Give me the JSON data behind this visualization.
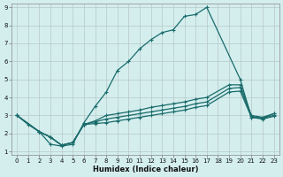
{
  "xlabel": "Humidex (Indice chaleur)",
  "bg_color": "#d4eeee",
  "grid_color": "#b8c8c8",
  "line_color": "#1a6b6b",
  "xlim": [
    -0.5,
    23.5
  ],
  "ylim": [
    0.8,
    9.2
  ],
  "xticks": [
    0,
    1,
    2,
    3,
    4,
    5,
    6,
    7,
    8,
    9,
    10,
    11,
    12,
    13,
    14,
    15,
    16,
    17,
    18,
    19,
    20,
    21,
    22,
    23
  ],
  "yticks": [
    1,
    2,
    3,
    4,
    5,
    6,
    7,
    8,
    9
  ],
  "line1_x": [
    0,
    1,
    2,
    3,
    4,
    5,
    6,
    7,
    8,
    9,
    10,
    11,
    12,
    13,
    14,
    15,
    16,
    17,
    20,
    21,
    22,
    23
  ],
  "line1_y": [
    3.0,
    2.5,
    2.1,
    1.4,
    1.3,
    1.4,
    2.6,
    3.5,
    4.3,
    5.5,
    6.0,
    6.7,
    7.2,
    7.6,
    7.75,
    8.5,
    8.6,
    9.0,
    5.0,
    2.9,
    2.85,
    3.1
  ],
  "line2_x": [
    0,
    2,
    3,
    4,
    5,
    6,
    7,
    8,
    9,
    10,
    11,
    12,
    13,
    14,
    15,
    16,
    17,
    19,
    20,
    21,
    22,
    23
  ],
  "line2_y": [
    3.0,
    2.1,
    1.8,
    1.35,
    1.5,
    2.5,
    2.7,
    3.0,
    3.1,
    3.2,
    3.3,
    3.45,
    3.55,
    3.65,
    3.75,
    3.9,
    4.0,
    4.7,
    4.7,
    3.0,
    2.9,
    3.1
  ],
  "line3_x": [
    0,
    2,
    3,
    4,
    5,
    6,
    7,
    8,
    9,
    10,
    11,
    12,
    13,
    14,
    15,
    16,
    17,
    19,
    20,
    21,
    22,
    23
  ],
  "line3_y": [
    3.0,
    2.1,
    1.8,
    1.35,
    1.5,
    2.5,
    2.65,
    2.8,
    2.9,
    3.0,
    3.1,
    3.2,
    3.3,
    3.4,
    3.5,
    3.65,
    3.75,
    4.5,
    4.55,
    2.95,
    2.85,
    3.0
  ],
  "line4_x": [
    0,
    2,
    3,
    4,
    5,
    6,
    7,
    8,
    9,
    10,
    11,
    12,
    13,
    14,
    15,
    16,
    17,
    19,
    20,
    21,
    22,
    23
  ],
  "line4_y": [
    3.0,
    2.1,
    1.8,
    1.35,
    1.5,
    2.5,
    2.55,
    2.6,
    2.7,
    2.8,
    2.9,
    3.0,
    3.1,
    3.2,
    3.3,
    3.45,
    3.55,
    4.3,
    4.35,
    2.9,
    2.8,
    2.95
  ]
}
